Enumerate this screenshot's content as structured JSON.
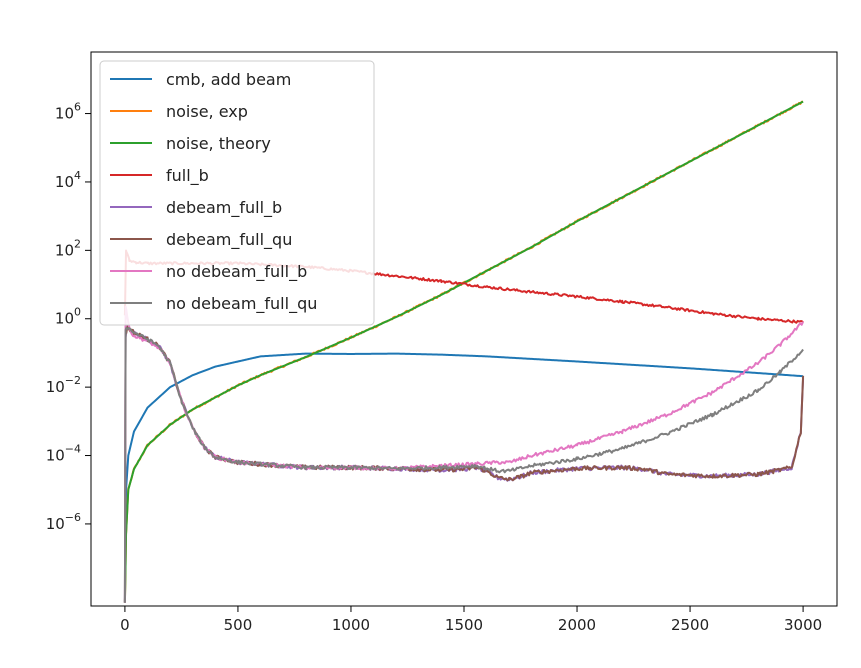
{
  "chart_data": {
    "type": "line",
    "title": "",
    "xlabel": "",
    "ylabel": "",
    "xlim": [
      -150,
      3150
    ],
    "ylim_log10": [
      -8.4,
      7.8
    ],
    "yscale": "log",
    "grid": false,
    "legend_position": "upper-left",
    "x_ticks": [
      0,
      500,
      1000,
      1500,
      2000,
      2500,
      3000
    ],
    "x_tick_labels": [
      "0",
      "500",
      "1000",
      "1500",
      "2000",
      "2500",
      "3000"
    ],
    "y_ticks_log10": [
      -6,
      -4,
      -2,
      0,
      2,
      4,
      6
    ],
    "y_tick_labels": [
      {
        "base": "10",
        "exp": "−6"
      },
      {
        "base": "10",
        "exp": "−4"
      },
      {
        "base": "10",
        "exp": "−2"
      },
      {
        "base": "10",
        "exp": "0"
      },
      {
        "base": "10",
        "exp": "2"
      },
      {
        "base": "10",
        "exp": "4"
      },
      {
        "base": "10",
        "exp": "6"
      }
    ],
    "series": [
      {
        "name": "cmb, add beam",
        "color": "#1f77b4",
        "noise": 0,
        "points": [
          [
            0,
            -8.3
          ],
          [
            5,
            -5.0
          ],
          [
            15,
            -4.0
          ],
          [
            40,
            -3.3
          ],
          [
            100,
            -2.6
          ],
          [
            200,
            -2.0
          ],
          [
            300,
            -1.65
          ],
          [
            400,
            -1.4
          ],
          [
            500,
            -1.25
          ],
          [
            600,
            -1.1
          ],
          [
            800,
            -1.02
          ],
          [
            1000,
            -1.03
          ],
          [
            1200,
            -1.02
          ],
          [
            1400,
            -1.05
          ],
          [
            1600,
            -1.1
          ],
          [
            2000,
            -1.25
          ],
          [
            2500,
            -1.45
          ],
          [
            3000,
            -1.68
          ]
        ]
      },
      {
        "name": "noise, exp",
        "color": "#ff7f0e",
        "noise": 0.03,
        "points": [
          [
            0,
            -8.3
          ],
          [
            5,
            -6.3
          ],
          [
            15,
            -5.0
          ],
          [
            40,
            -4.4
          ],
          [
            100,
            -3.7
          ],
          [
            200,
            -3.1
          ],
          [
            300,
            -2.65
          ],
          [
            400,
            -2.3
          ],
          [
            500,
            -1.95
          ],
          [
            600,
            -1.65
          ],
          [
            800,
            -1.12
          ],
          [
            1000,
            -0.55
          ],
          [
            1200,
            0.05
          ],
          [
            1400,
            0.7
          ],
          [
            1600,
            1.4
          ],
          [
            1800,
            2.1
          ],
          [
            2000,
            2.85
          ],
          [
            2200,
            3.55
          ],
          [
            2400,
            4.25
          ],
          [
            2600,
            4.95
          ],
          [
            2800,
            5.65
          ],
          [
            3000,
            6.35
          ]
        ]
      },
      {
        "name": "noise, theory",
        "color": "#2ca02c",
        "noise": 0,
        "points": [
          [
            0,
            -8.3
          ],
          [
            5,
            -6.3
          ],
          [
            15,
            -5.0
          ],
          [
            40,
            -4.4
          ],
          [
            100,
            -3.7
          ],
          [
            200,
            -3.1
          ],
          [
            300,
            -2.65
          ],
          [
            400,
            -2.3
          ],
          [
            500,
            -1.95
          ],
          [
            600,
            -1.65
          ],
          [
            800,
            -1.12
          ],
          [
            1000,
            -0.55
          ],
          [
            1200,
            0.05
          ],
          [
            1400,
            0.7
          ],
          [
            1600,
            1.4
          ],
          [
            1800,
            2.1
          ],
          [
            2000,
            2.85
          ],
          [
            2200,
            3.55
          ],
          [
            2400,
            4.25
          ],
          [
            2600,
            4.95
          ],
          [
            2800,
            5.65
          ],
          [
            3000,
            6.35
          ]
        ]
      },
      {
        "name": "full_b",
        "color": "#d62728",
        "noise": 0.035,
        "points": [
          [
            0,
            0.1
          ],
          [
            5,
            2.0
          ],
          [
            20,
            1.7
          ],
          [
            50,
            1.65
          ],
          [
            100,
            1.62
          ],
          [
            300,
            1.62
          ],
          [
            500,
            1.62
          ],
          [
            800,
            1.52
          ],
          [
            1000,
            1.4
          ],
          [
            1200,
            1.25
          ],
          [
            1400,
            1.1
          ],
          [
            1600,
            0.93
          ],
          [
            1800,
            0.78
          ],
          [
            2000,
            0.65
          ],
          [
            2200,
            0.5
          ],
          [
            2400,
            0.33
          ],
          [
            2600,
            0.15
          ],
          [
            2800,
            0.0
          ],
          [
            3000,
            -0.1
          ]
        ]
      },
      {
        "name": "debeam_full_b",
        "color": "#9467bd",
        "noise": 0.06,
        "points": [
          [
            0,
            -8.3
          ],
          [
            3,
            -0.5
          ],
          [
            10,
            -0.25
          ],
          [
            40,
            -0.4
          ],
          [
            100,
            -0.6
          ],
          [
            150,
            -0.8
          ],
          [
            200,
            -1.3
          ],
          [
            250,
            -2.4
          ],
          [
            300,
            -3.2
          ],
          [
            350,
            -3.75
          ],
          [
            400,
            -4.05
          ],
          [
            500,
            -4.2
          ],
          [
            600,
            -4.25
          ],
          [
            800,
            -4.35
          ],
          [
            1000,
            -4.35
          ],
          [
            1200,
            -4.38
          ],
          [
            1400,
            -4.42
          ],
          [
            1500,
            -4.4
          ],
          [
            1550,
            -4.35
          ],
          [
            1600,
            -4.45
          ],
          [
            1650,
            -4.65
          ],
          [
            1700,
            -4.7
          ],
          [
            1750,
            -4.62
          ],
          [
            1800,
            -4.5
          ],
          [
            2000,
            -4.38
          ],
          [
            2200,
            -4.35
          ],
          [
            2300,
            -4.4
          ],
          [
            2400,
            -4.55
          ],
          [
            2600,
            -4.6
          ],
          [
            2800,
            -4.55
          ],
          [
            2950,
            -4.35
          ],
          [
            2990,
            -3.3
          ],
          [
            3000,
            -1.7
          ]
        ]
      },
      {
        "name": "debeam_full_qu",
        "color": "#8c564b",
        "noise": 0.06,
        "points": [
          [
            0,
            -8.3
          ],
          [
            3,
            -0.5
          ],
          [
            10,
            -0.25
          ],
          [
            40,
            -0.4
          ],
          [
            100,
            -0.6
          ],
          [
            150,
            -0.8
          ],
          [
            200,
            -1.3
          ],
          [
            250,
            -2.4
          ],
          [
            300,
            -3.2
          ],
          [
            350,
            -3.75
          ],
          [
            400,
            -4.05
          ],
          [
            500,
            -4.2
          ],
          [
            600,
            -4.25
          ],
          [
            800,
            -4.35
          ],
          [
            1000,
            -4.35
          ],
          [
            1200,
            -4.38
          ],
          [
            1400,
            -4.42
          ],
          [
            1500,
            -4.4
          ],
          [
            1550,
            -4.35
          ],
          [
            1600,
            -4.45
          ],
          [
            1650,
            -4.65
          ],
          [
            1700,
            -4.7
          ],
          [
            1750,
            -4.62
          ],
          [
            1800,
            -4.5
          ],
          [
            2000,
            -4.38
          ],
          [
            2200,
            -4.35
          ],
          [
            2300,
            -4.4
          ],
          [
            2400,
            -4.55
          ],
          [
            2600,
            -4.6
          ],
          [
            2800,
            -4.55
          ],
          [
            2950,
            -4.35
          ],
          [
            2990,
            -3.3
          ],
          [
            3000,
            -1.7
          ]
        ]
      },
      {
        "name": "no debeam_full_b",
        "color": "#e377c2",
        "noise": 0.05,
        "points": [
          [
            0,
            -8.3
          ],
          [
            3,
            0.4
          ],
          [
            10,
            0.1
          ],
          [
            20,
            -0.3
          ],
          [
            40,
            -0.5
          ],
          [
            100,
            -0.65
          ],
          [
            150,
            -0.85
          ],
          [
            200,
            -1.3
          ],
          [
            250,
            -2.4
          ],
          [
            300,
            -3.2
          ],
          [
            350,
            -3.75
          ],
          [
            400,
            -4.05
          ],
          [
            500,
            -4.2
          ],
          [
            600,
            -4.25
          ],
          [
            800,
            -4.35
          ],
          [
            1000,
            -4.35
          ],
          [
            1200,
            -4.38
          ],
          [
            1400,
            -4.3
          ],
          [
            1550,
            -4.25
          ],
          [
            1650,
            -4.2
          ],
          [
            1700,
            -4.2
          ],
          [
            1800,
            -4.0
          ],
          [
            2000,
            -3.7
          ],
          [
            2200,
            -3.3
          ],
          [
            2400,
            -2.8
          ],
          [
            2600,
            -2.15
          ],
          [
            2800,
            -1.3
          ],
          [
            2900,
            -0.75
          ],
          [
            3000,
            -0.1
          ]
        ]
      },
      {
        "name": "no debeam_full_qu",
        "color": "#7f7f7f",
        "noise": 0.05,
        "points": [
          [
            0,
            -8.3
          ],
          [
            3,
            -0.3
          ],
          [
            10,
            -0.25
          ],
          [
            40,
            -0.4
          ],
          [
            100,
            -0.6
          ],
          [
            150,
            -0.8
          ],
          [
            200,
            -1.3
          ],
          [
            250,
            -2.4
          ],
          [
            300,
            -3.2
          ],
          [
            350,
            -3.75
          ],
          [
            400,
            -4.05
          ],
          [
            500,
            -4.2
          ],
          [
            600,
            -4.25
          ],
          [
            800,
            -4.35
          ],
          [
            1000,
            -4.35
          ],
          [
            1200,
            -4.38
          ],
          [
            1400,
            -4.35
          ],
          [
            1550,
            -4.3
          ],
          [
            1650,
            -4.45
          ],
          [
            1700,
            -4.45
          ],
          [
            1800,
            -4.3
          ],
          [
            2000,
            -4.1
          ],
          [
            2200,
            -3.8
          ],
          [
            2400,
            -3.35
          ],
          [
            2600,
            -2.8
          ],
          [
            2800,
            -2.1
          ],
          [
            2900,
            -1.55
          ],
          [
            3000,
            -0.9
          ]
        ]
      }
    ]
  }
}
